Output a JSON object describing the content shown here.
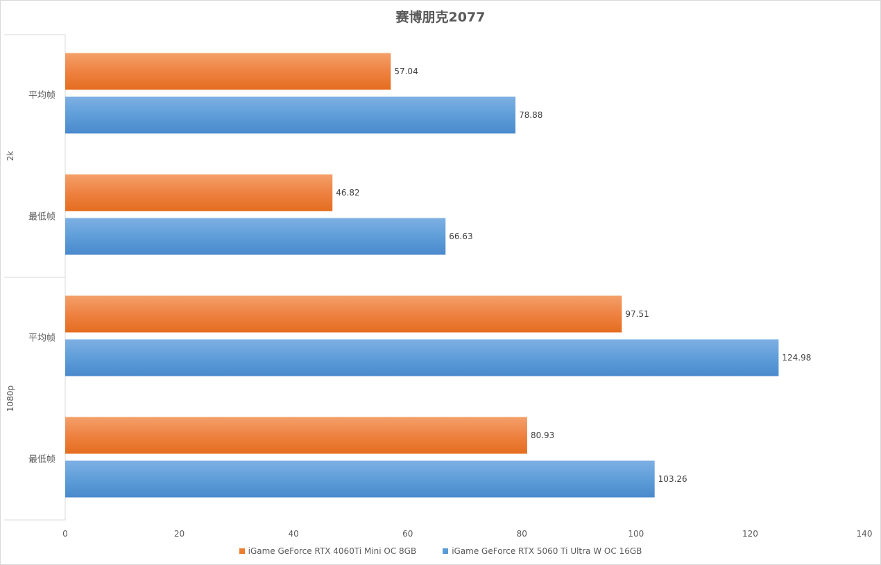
{
  "chart_data": {
    "type": "bar",
    "orientation": "horizontal",
    "title": "赛博朋克2077",
    "groups": [
      {
        "name": "2k",
        "categories": [
          "平均帧",
          "最低帧"
        ]
      },
      {
        "name": "1080p",
        "categories": [
          "平均帧",
          "最低帧"
        ]
      }
    ],
    "series": [
      {
        "name": "iGame GeForce RTX 4060Ti Mini OC 8GB",
        "color": "#ED7D31",
        "values": [
          57.04,
          46.82,
          97.51,
          80.93
        ],
        "labels": [
          "57.04",
          "46.82",
          "97.51",
          "80.93"
        ]
      },
      {
        "name": "iGame GeForce RTX 5060 Ti Ultra W OC 16GB",
        "color": "#5B9BD5",
        "values": [
          78.88,
          66.63,
          124.98,
          103.26
        ],
        "labels": [
          "78.88",
          "66.63",
          "124.98",
          "103.26"
        ]
      }
    ],
    "xlim": [
      0,
      140
    ],
    "xticks": [
      0,
      20,
      40,
      60,
      80,
      100,
      120,
      140
    ],
    "xtick_labels": [
      "0",
      "20",
      "40",
      "60",
      "80",
      "100",
      "120",
      "140"
    ],
    "grid": false,
    "legend": "bottom"
  }
}
